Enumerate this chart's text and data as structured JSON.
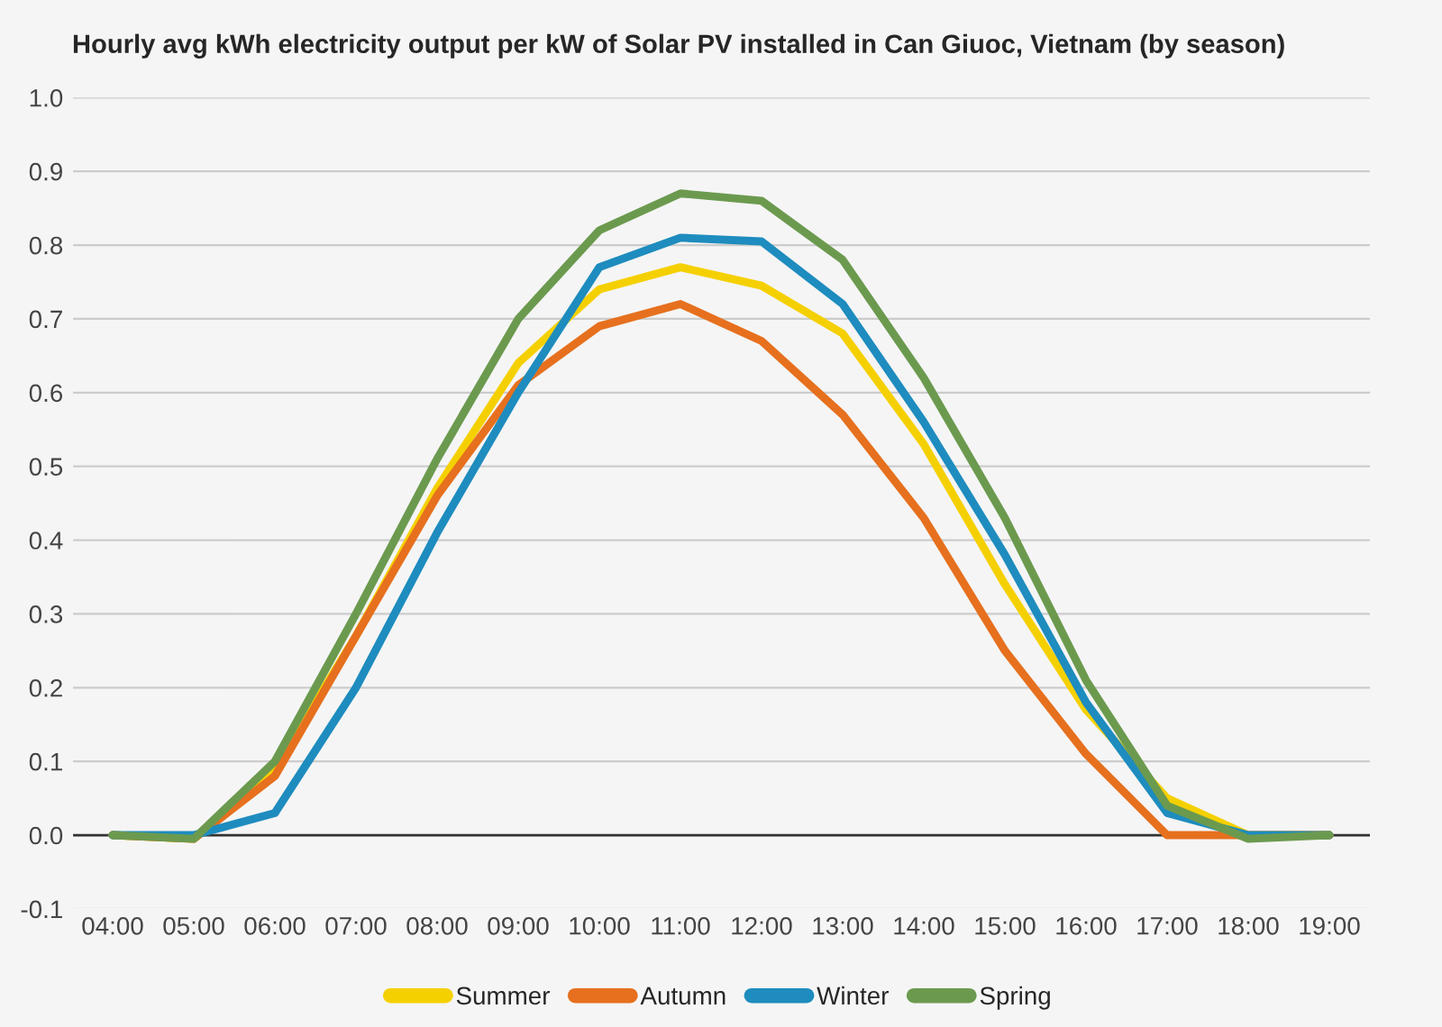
{
  "chart_data": {
    "type": "line",
    "title": "Hourly avg kWh electricity output per kW of Solar PV installed in Can Giuoc, Vietnam (by season)",
    "x": [
      4,
      5,
      6,
      7,
      8,
      9,
      10,
      11,
      12,
      13,
      14,
      15,
      16,
      17,
      18,
      19
    ],
    "series": [
      {
        "name": "Summer",
        "color": "#f5d000",
        "values": [
          0,
          -0.005,
          0.09,
          0.27,
          0.47,
          0.64,
          0.74,
          0.77,
          0.745,
          0.68,
          0.53,
          0.34,
          0.17,
          0.05,
          0.0,
          0.0
        ]
      },
      {
        "name": "Autumn",
        "color": "#e6701e",
        "values": [
          0,
          -0.005,
          0.08,
          0.27,
          0.46,
          0.61,
          0.69,
          0.72,
          0.67,
          0.57,
          0.43,
          0.25,
          0.11,
          0.0,
          0.0,
          0.0
        ]
      },
      {
        "name": "Winter",
        "color": "#1e8cbe",
        "values": [
          0,
          0.0,
          0.03,
          0.2,
          0.41,
          0.6,
          0.77,
          0.81,
          0.805,
          0.72,
          0.56,
          0.38,
          0.18,
          0.03,
          0.0,
          0.0
        ]
      },
      {
        "name": "Spring",
        "color": "#6b9a4f",
        "values": [
          0,
          -0.005,
          0.1,
          0.3,
          0.51,
          0.7,
          0.82,
          0.87,
          0.86,
          0.78,
          0.62,
          0.43,
          0.21,
          0.04,
          -0.005,
          0.0
        ]
      }
    ],
    "xlim": [
      3.5,
      19.5
    ],
    "xticks": [
      {
        "value": 4,
        "label": "04:00"
      },
      {
        "value": 5,
        "label": "05:00"
      },
      {
        "value": 6,
        "label": "06:00"
      },
      {
        "value": 7,
        "label": "07:00"
      },
      {
        "value": 8,
        "label": "08:00"
      },
      {
        "value": 9,
        "label": "09:00"
      },
      {
        "value": 10,
        "label": "10:00"
      },
      {
        "value": 11,
        "label": "11:00"
      },
      {
        "value": 12,
        "label": "12:00"
      },
      {
        "value": 13,
        "label": "13:00"
      },
      {
        "value": 14,
        "label": "14:00"
      },
      {
        "value": 15,
        "label": "15:00"
      },
      {
        "value": 16,
        "label": "16:00"
      },
      {
        "value": 17,
        "label": "17:00"
      },
      {
        "value": 18,
        "label": "18:00"
      },
      {
        "value": 19,
        "label": "19:00"
      }
    ],
    "ylim": [
      -0.1,
      1.0
    ],
    "yticks": [
      -0.1,
      {
        "value": 0,
        "label": "0.0"
      },
      0.1,
      0.2,
      0.3,
      0.4,
      0.5,
      0.6,
      0.7,
      0.8,
      0.9,
      {
        "value": 1,
        "label": "1.0"
      }
    ],
    "ref_lines": [
      {
        "axis": "y",
        "value": 0,
        "label": null,
        "color": "#333333"
      }
    ],
    "grid": "y",
    "legend": "bottom",
    "line_style": "solid",
    "marker": "none"
  }
}
